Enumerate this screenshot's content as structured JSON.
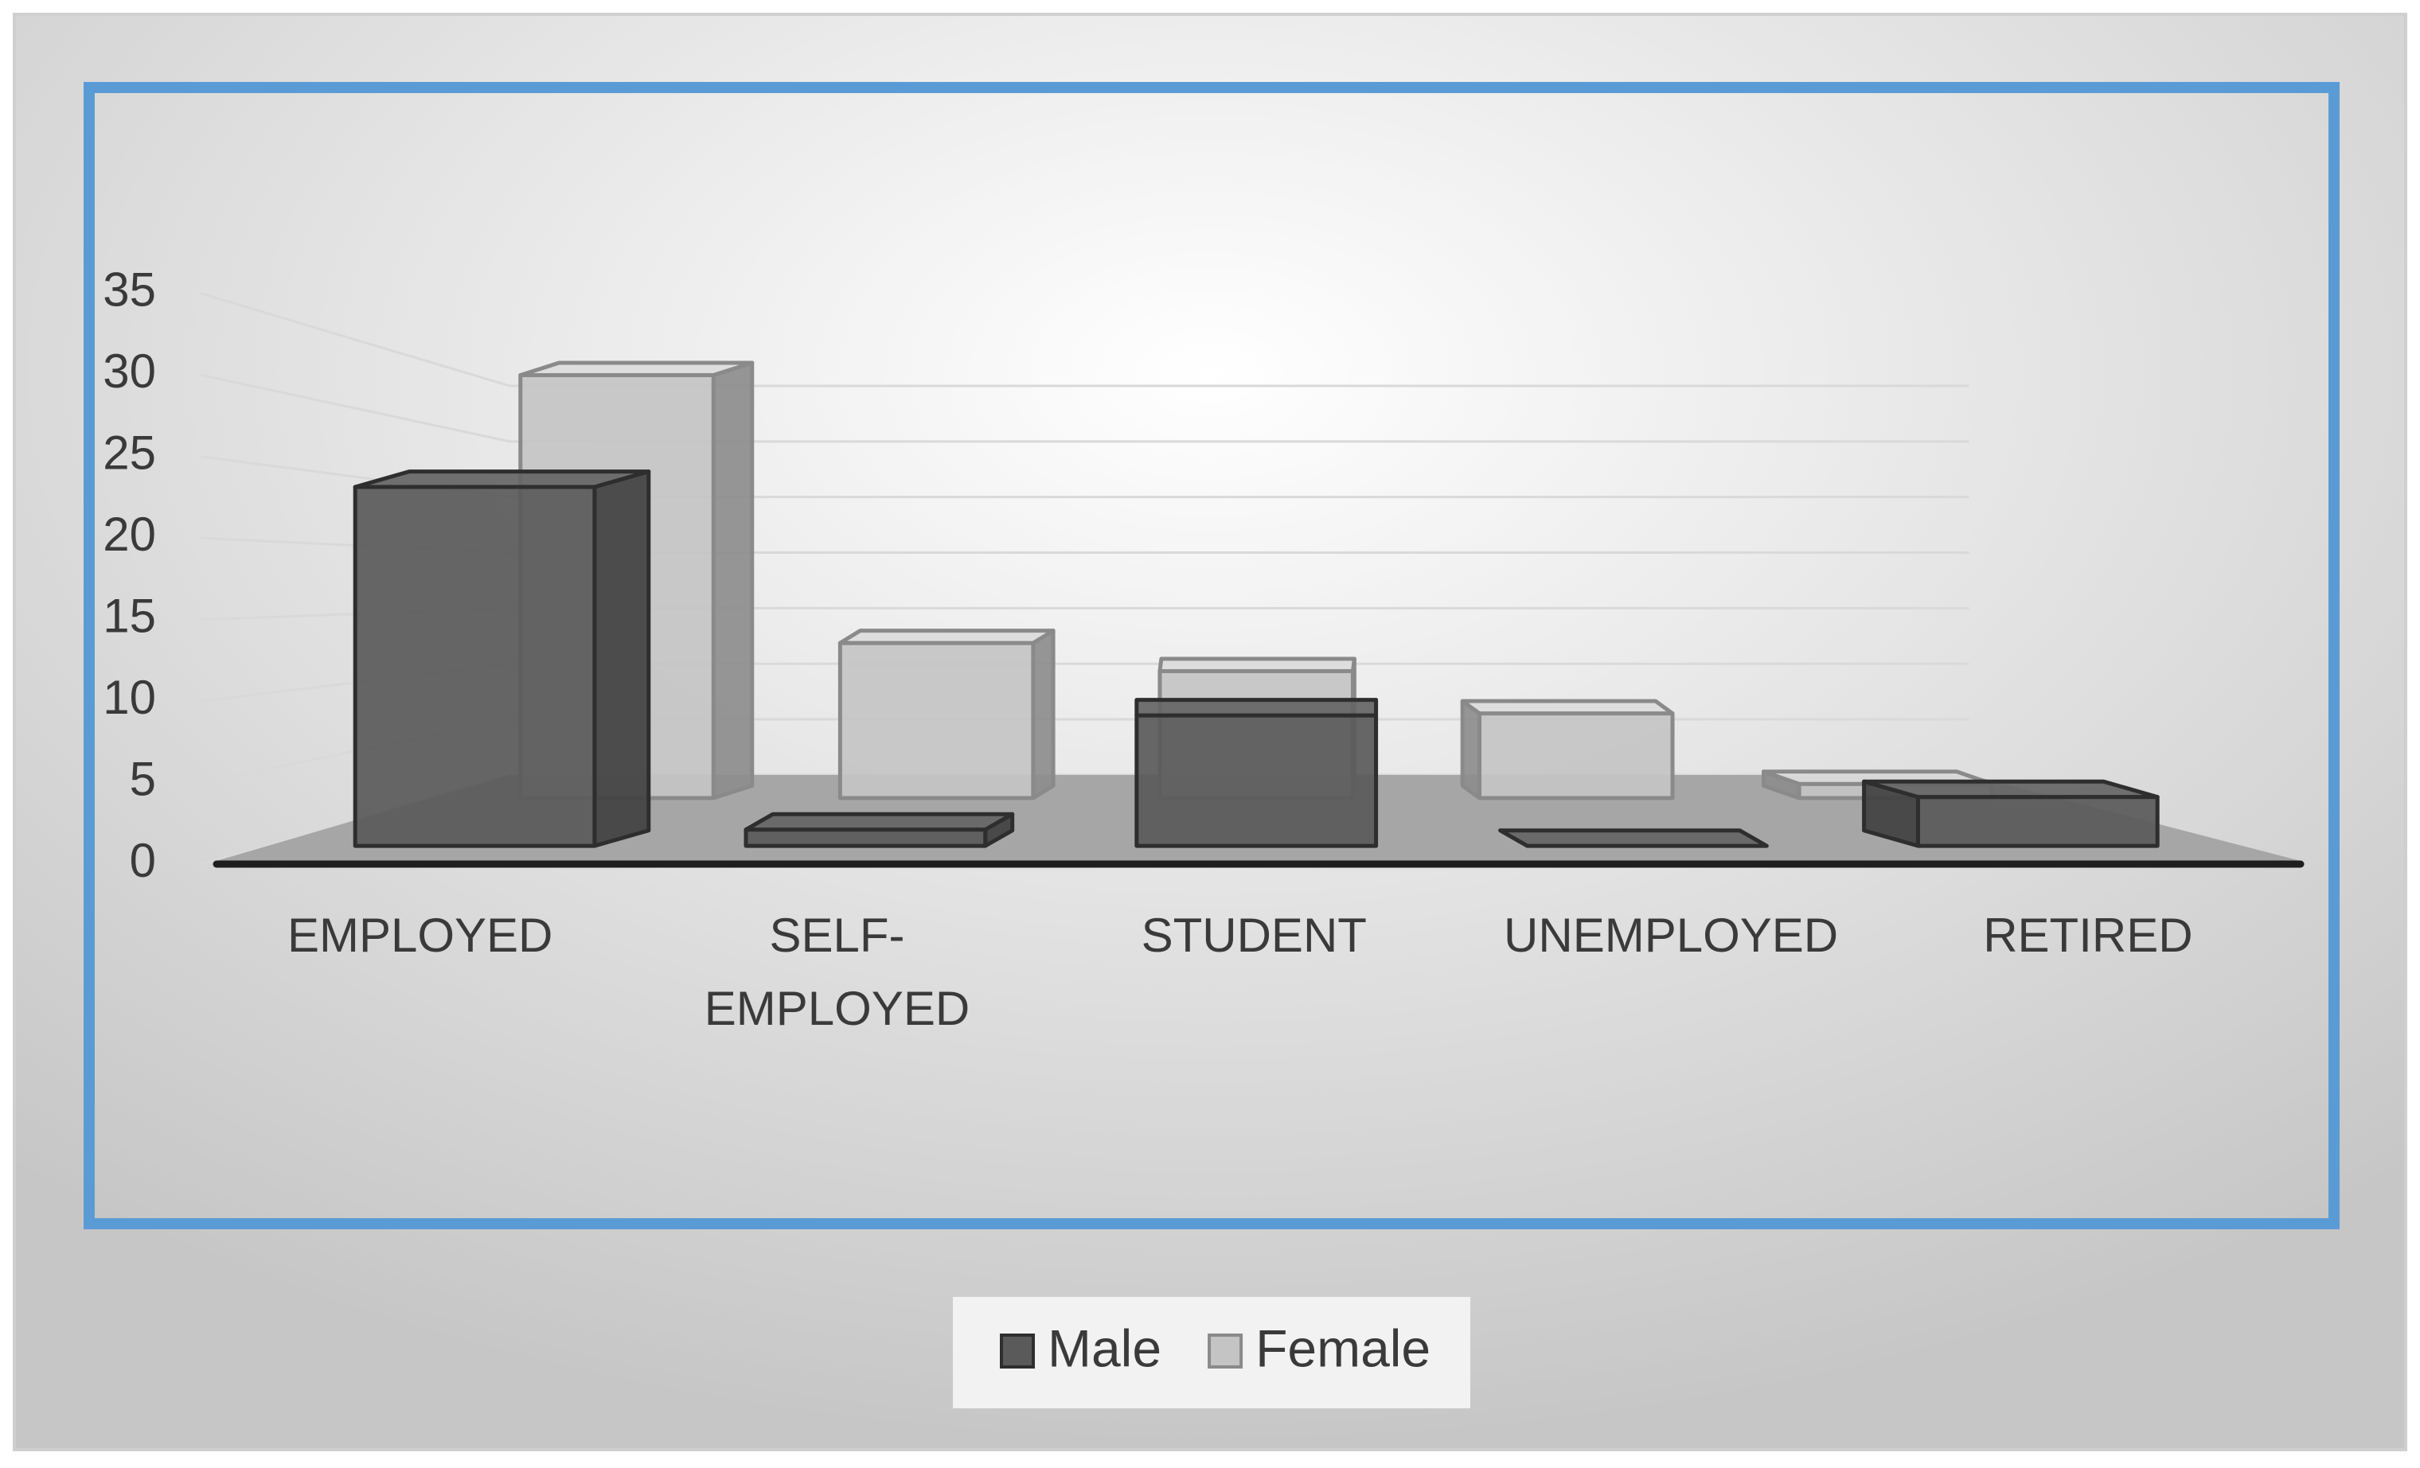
{
  "chart_data": {
    "type": "bar3d",
    "categories": [
      "EMPLOYED",
      "SELF-EMPLOYED",
      "STUDENT",
      "UNEMPLOYED",
      "RETIRED"
    ],
    "series": [
      {
        "name": "Male",
        "color": "#5a5a5a",
        "values": [
          22,
          1,
          8,
          0,
          3
        ]
      },
      {
        "name": "Female",
        "color": "#c4c4c4",
        "values": [
          30,
          11,
          9,
          6,
          1
        ]
      }
    ],
    "ylim": [
      0,
      35
    ],
    "yticks": [
      0,
      5,
      10,
      15,
      20,
      25,
      30,
      35
    ],
    "grid": true,
    "legend": "bottom"
  }
}
